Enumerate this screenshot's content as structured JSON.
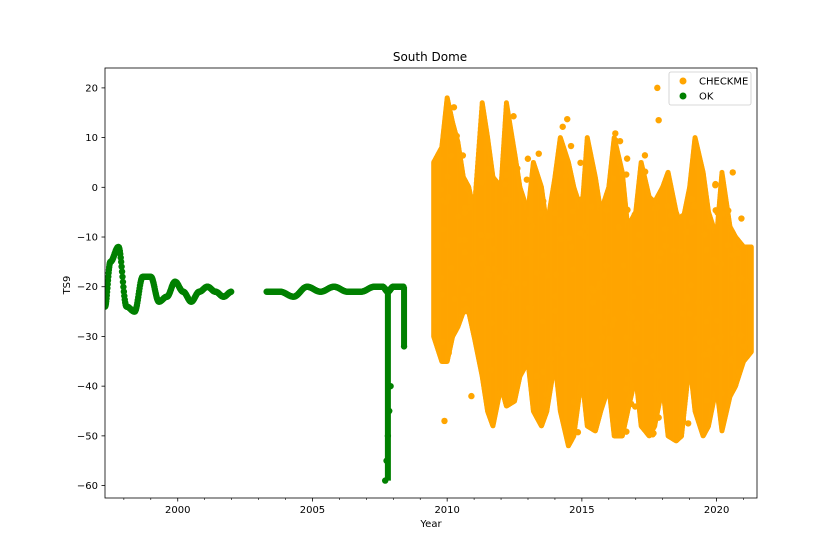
{
  "chart_data": {
    "type": "scatter",
    "title": "South Dome",
    "xlabel": "Year",
    "ylabel": "TS9",
    "xlim": [
      1997.3,
      2021.5
    ],
    "ylim": [
      -62.5,
      24
    ],
    "xticks": [
      2000,
      2005,
      2010,
      2015,
      2020
    ],
    "yticks": [
      20,
      10,
      0,
      -10,
      -20,
      -30,
      -40,
      -50,
      -60
    ],
    "legend_position": "top-right",
    "grid": false,
    "series": [
      {
        "name": "CHECKME",
        "color": "#ffa500",
        "shape": "dense seasonal oscillation with scattered outliers",
        "x": [
          2009.5,
          2009.8,
          2010.0,
          2010.2,
          2010.4,
          2010.6,
          2010.8,
          2011.0,
          2011.3,
          2011.5,
          2011.7,
          2012.0,
          2012.2,
          2012.5,
          2012.7,
          2013.0,
          2013.2,
          2013.5,
          2013.7,
          2014.0,
          2014.2,
          2014.5,
          2014.7,
          2015.0,
          2015.2,
          2015.5,
          2015.7,
          2016.0,
          2016.2,
          2016.5,
          2016.7,
          2017.0,
          2017.2,
          2017.5,
          2017.7,
          2018.0,
          2018.2,
          2018.5,
          2018.7,
          2019.0,
          2019.2,
          2019.5,
          2019.7,
          2020.0,
          2020.2,
          2020.5,
          2020.7,
          2021.0,
          2021.3
        ],
        "y_high": [
          5,
          8,
          18,
          13,
          9,
          2,
          0,
          -5,
          17,
          10,
          2,
          0,
          17,
          7,
          0,
          -5,
          5,
          0,
          -8,
          2,
          10,
          5,
          0,
          -5,
          10,
          2,
          -5,
          0,
          10,
          3,
          -8,
          -5,
          5,
          -2,
          -3,
          0,
          3,
          -5,
          -8,
          0,
          10,
          3,
          -5,
          -10,
          3,
          -8,
          -10,
          -12,
          -12
        ],
        "y_low": [
          -30,
          -35,
          -35,
          -30,
          -28,
          -25,
          -25,
          -30,
          -38,
          -45,
          -48,
          -40,
          -44,
          -43,
          -38,
          -35,
          -45,
          -48,
          -45,
          -35,
          -45,
          -52,
          -50,
          -38,
          -48,
          -49,
          -45,
          -40,
          -50,
          -50,
          -45,
          -38,
          -48,
          -50,
          -48,
          -40,
          -50,
          -51,
          -50,
          -35,
          -45,
          -50,
          -48,
          -40,
          -49,
          -42,
          -40,
          -35,
          -33
        ],
        "outliers": [
          [
            2009.9,
            -47
          ],
          [
            2010.9,
            -42
          ],
          [
            2011.4,
            -40
          ],
          [
            2017.8,
            20
          ],
          [
            2017.85,
            13.5
          ],
          [
            2020.6,
            3
          ]
        ]
      },
      {
        "name": "OK",
        "color": "#008000",
        "shape": "damped oscillation around -21 then flat with dropouts",
        "x": [
          1997.3,
          1997.5,
          1997.8,
          1998.1,
          1998.4,
          1998.7,
          1999.0,
          1999.3,
          1999.6,
          1999.9,
          2000.2,
          2000.5,
          2000.8,
          2001.1,
          2001.4,
          2001.7,
          2002.0,
          2003.3,
          2003.8,
          2004.3,
          2004.8,
          2005.3,
          2005.8,
          2006.3,
          2006.8,
          2007.3,
          2007.6,
          2007.8,
          2008.0,
          2008.4
        ],
        "y": [
          -24,
          -15,
          -12,
          -24,
          -25,
          -18,
          -18,
          -23,
          -22,
          -19,
          -21,
          -23,
          -21,
          -20,
          -21,
          -22,
          -21,
          -21,
          -21,
          -22,
          -20,
          -21,
          -20,
          -21,
          -21,
          -20,
          -20,
          -21,
          -20,
          -20
        ],
        "dropouts": [
          [
            2007.7,
            -59
          ],
          [
            2007.75,
            -55
          ],
          [
            2007.8,
            -50
          ],
          [
            2007.85,
            -45
          ],
          [
            2007.9,
            -40
          ],
          [
            2008.4,
            -32
          ]
        ]
      }
    ]
  }
}
